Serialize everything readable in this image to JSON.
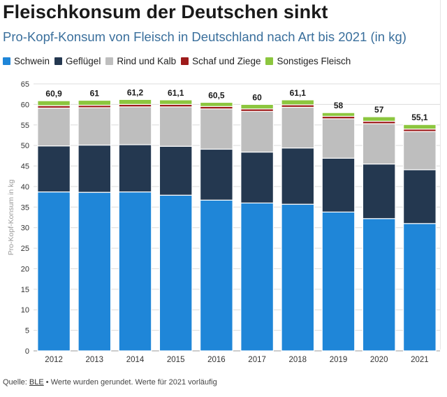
{
  "title": "Fleischkonsum der Deutschen sinkt",
  "subtitle": "Pro-Kopf-Konsum von Fleisch in Deutschland nach Art bis 2021 (in kg)",
  "footer": {
    "source_label": "Quelle:",
    "source_link": "BLE",
    "note": "• Werte wurden gerundet. Werte für 2021 vorläufig"
  },
  "chart_data": {
    "type": "bar",
    "stacked": true,
    "categories": [
      "2012",
      "2013",
      "2014",
      "2015",
      "2016",
      "2017",
      "2018",
      "2019",
      "2020",
      "2021"
    ],
    "series": [
      {
        "name": "Schwein",
        "color": "#1f86d8",
        "values": [
          38.7,
          38.6,
          38.7,
          37.9,
          36.7,
          36.0,
          35.7,
          33.8,
          32.2,
          31.0
        ]
      },
      {
        "name": "Geflügel",
        "color": "#243850",
        "values": [
          11.2,
          11.5,
          11.5,
          11.9,
          12.4,
          12.4,
          13.7,
          13.1,
          13.3,
          13.1
        ]
      },
      {
        "name": "Rind und Kalb",
        "color": "#bebebe",
        "values": [
          9.2,
          9.1,
          9.2,
          9.6,
          9.8,
          9.9,
          9.9,
          9.6,
          9.8,
          9.3
        ]
      },
      {
        "name": "Schaf und Ziege",
        "color": "#9e1b1b",
        "values": [
          0.6,
          0.6,
          0.6,
          0.6,
          0.6,
          0.6,
          0.6,
          0.6,
          0.6,
          0.6
        ]
      },
      {
        "name": "Sonstiges Fleisch",
        "color": "#8cc63f",
        "values": [
          1.2,
          1.2,
          1.2,
          1.1,
          1.0,
          1.1,
          1.2,
          0.9,
          1.1,
          1.1
        ]
      }
    ],
    "totals": [
      "60,9",
      "61",
      "61,2",
      "61,1",
      "60,5",
      "60",
      "61,1",
      "58",
      "57",
      "55,1"
    ],
    "ylabel": "Pro-Kopf-Konsum in kg",
    "xlabel": "",
    "ylim": [
      0,
      65
    ],
    "yticks": [
      0,
      5,
      10,
      15,
      20,
      25,
      30,
      35,
      40,
      45,
      50,
      55,
      60,
      65
    ],
    "grid": true,
    "legend_position": "top-left"
  }
}
